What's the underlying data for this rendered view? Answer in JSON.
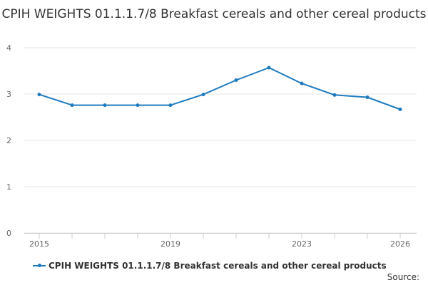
{
  "chart_data": {
    "type": "line",
    "title": "CPIH WEIGHTS 01.1.1.7/8 Breakfast cereals and other cereal products",
    "x": [
      2015,
      2016,
      2017,
      2018,
      2019,
      2020,
      2021,
      2022,
      2023,
      2024,
      2025,
      2026
    ],
    "x_tick_labels": [
      "2015",
      "2019",
      "2023",
      "2026"
    ],
    "x_tick_values": [
      2015,
      2019,
      2023,
      2026
    ],
    "series": [
      {
        "name": "CPIH WEIGHTS 01.1.1.7/8 Breakfast cereals and other cereal products",
        "values": [
          2.99,
          2.76,
          2.76,
          2.76,
          2.76,
          2.99,
          3.3,
          3.57,
          3.23,
          2.98,
          2.93,
          2.67
        ]
      }
    ],
    "y_ticks": [
      0,
      1,
      2,
      3,
      4
    ],
    "ylim": [
      0,
      4
    ],
    "grid": true,
    "legend_position": "bottom",
    "color": "#1f7bbf"
  },
  "source_label": "Source:"
}
